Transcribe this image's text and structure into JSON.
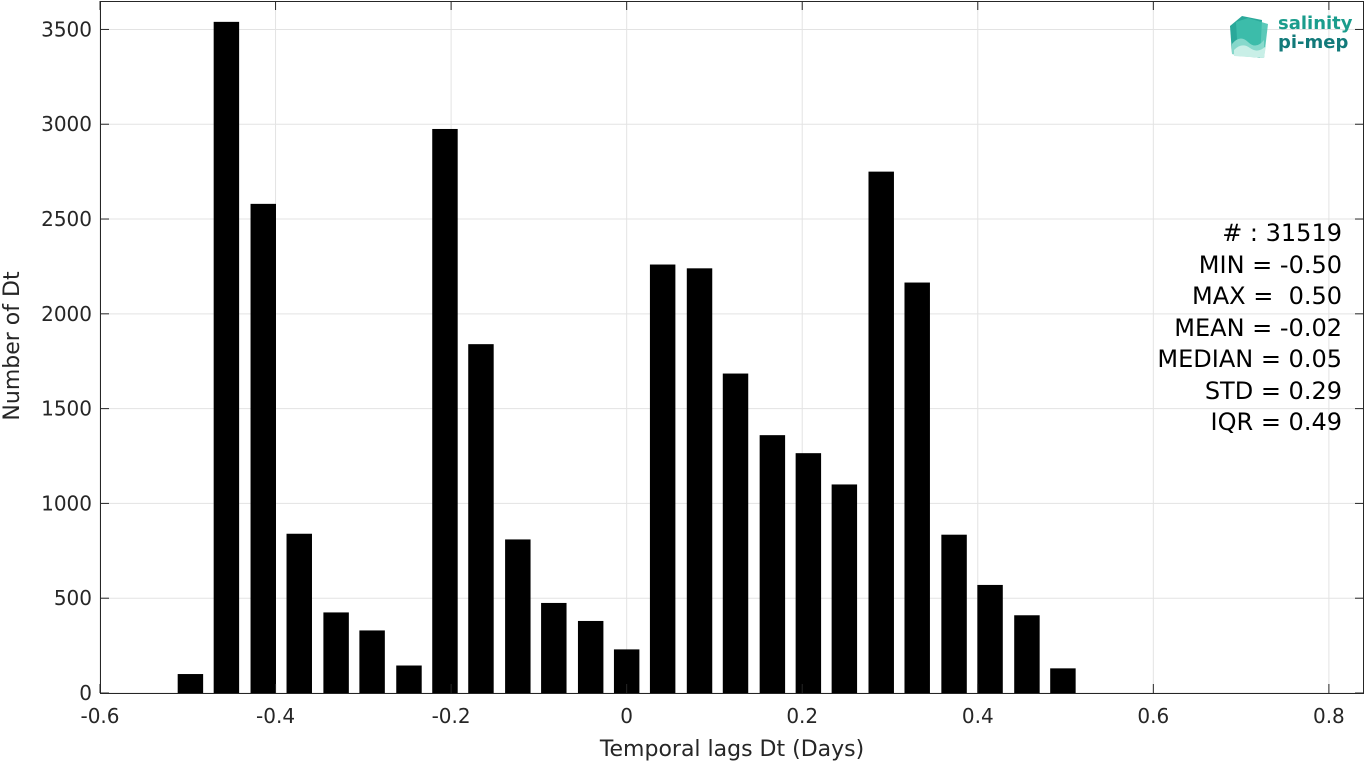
{
  "chart_data": {
    "type": "bar",
    "xlabel": "Temporal lags Dt (Days)",
    "ylabel": "Number of Dt",
    "xlim": [
      -0.6,
      0.84
    ],
    "ylim": [
      0,
      3650
    ],
    "xticks": [
      -0.6,
      -0.4,
      -0.2,
      0,
      0.2,
      0.4,
      0.6,
      0.8
    ],
    "xtick_labels": [
      "-0.6",
      "-0.4",
      "-0.2",
      "0",
      "0.2",
      "0.4",
      "0.6",
      "0.8"
    ],
    "yticks": [
      0,
      500,
      1000,
      1500,
      2000,
      2500,
      3000,
      3500
    ],
    "ytick_labels": [
      "0",
      "500",
      "1000",
      "1500",
      "2000",
      "2500",
      "3000",
      "3500"
    ],
    "grid": true,
    "bar_width": 0.029,
    "x": [
      -0.497,
      -0.456,
      -0.414,
      -0.373,
      -0.331,
      -0.29,
      -0.248,
      -0.207,
      -0.166,
      -0.124,
      -0.083,
      -0.041,
      0.0,
      0.041,
      0.083,
      0.124,
      0.166,
      0.207,
      0.248,
      0.29,
      0.331,
      0.373,
      0.414,
      0.456,
      0.497
    ],
    "values": [
      100,
      3540,
      2580,
      840,
      425,
      330,
      145,
      2975,
      1840,
      810,
      475,
      380,
      230,
      2260,
      2240,
      1685,
      1360,
      1265,
      1100,
      2750,
      2165,
      835,
      570,
      410,
      130
    ],
    "bar_color": "#000000"
  },
  "stats": {
    "count": "# : 31519",
    "min": "MIN = -0.50",
    "max": "MAX =  0.50",
    "mean": "MEAN = -0.02",
    "median": "MEDIAN = 0.05",
    "std": "STD = 0.29",
    "iqr": "IQR = 0.49"
  },
  "logo": {
    "line1": "salinity",
    "line2": "pi-mep",
    "icon": "salinity-wave-icon",
    "color": "#1a9c8c"
  }
}
